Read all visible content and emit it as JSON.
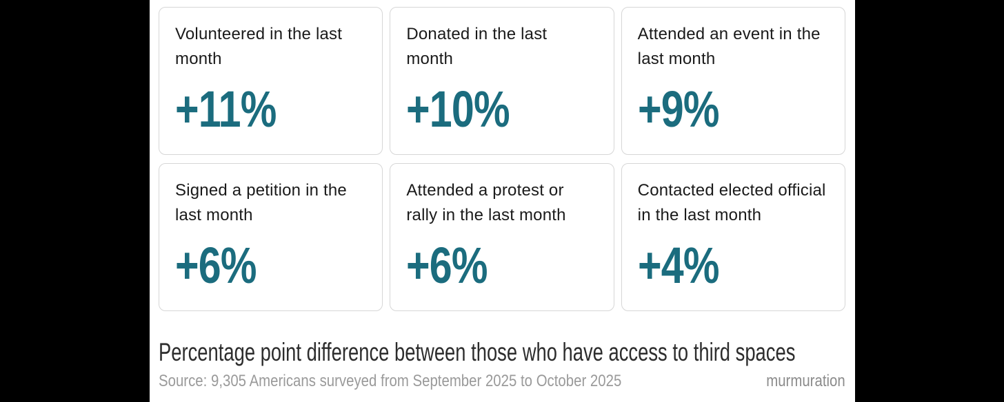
{
  "chart_data": {
    "type": "table",
    "categories": [
      "Volunteered in the last month",
      "Donated in the last month",
      "Attended an event in the last month",
      "Signed a petition in the last month",
      "Attended a protest or rally in the last month",
      "Contacted elected official in the last month"
    ],
    "values": [
      11,
      10,
      9,
      6,
      6,
      4
    ],
    "value_labels": [
      "+11%",
      "+10%",
      "+9%",
      "+6%",
      "+6%",
      "+4%"
    ],
    "unit": "percentage points",
    "title": "Percentage point difference between those who have access to third spaces",
    "source": "Source: 9,305 Americans surveyed from September 2025 to October 2025",
    "brand": "murmuration",
    "layout": "3x2 stat-card grid, title and source below"
  },
  "cards": [
    {
      "label": "Volunteered in the last month",
      "value": "+11%"
    },
    {
      "label": "Donated in the last month",
      "value": "+10%"
    },
    {
      "label": "Attended an event in the last month",
      "value": "+9%"
    },
    {
      "label": "Signed a petition in the last month",
      "value": "+6%"
    },
    {
      "label": "Attended a protest or rally in the last month",
      "value": "+6%"
    },
    {
      "label": "Contacted elected official in the last month",
      "value": "+4%"
    }
  ],
  "footer": {
    "title": "Percentage point difference between those who have access to third spaces",
    "source": "Source: 9,305 Americans surveyed from September 2025 to October 2025",
    "brand": "murmuration"
  },
  "colors": {
    "accent_teal": "#1b6c7e",
    "card_border": "#d6d6d6",
    "card_label_text": "#1a1a1a",
    "title_text": "#2d2d2d",
    "source_text": "#9a9a9a",
    "brand_text": "#8b8b8b",
    "background": "#000000",
    "panel_background": "#ffffff"
  }
}
